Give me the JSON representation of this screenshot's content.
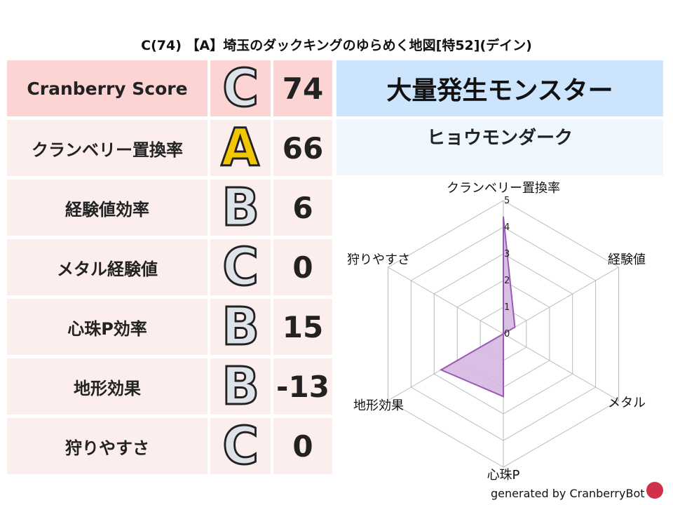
{
  "title": "C(74) 【A】埼玉のダックキングのゆらめく地図[特52](デイン)",
  "rows": [
    {
      "label": "Cranberry Score",
      "grade": "C",
      "score": "74",
      "bg": "#fcd4d4"
    },
    {
      "label": "クランベリー置換率",
      "grade": "A",
      "score": "66",
      "bg": "#fdeeee"
    },
    {
      "label": "経験値効率",
      "grade": "B",
      "score": "6",
      "bg": "#fdeeee"
    },
    {
      "label": "メタル経験値",
      "grade": "C",
      "score": "0",
      "bg": "#fdeeee"
    },
    {
      "label": "心珠P効率",
      "grade": "B",
      "score": "15",
      "bg": "#fdeeee"
    },
    {
      "label": "地形効果",
      "grade": "B",
      "score": "-13",
      "bg": "#fdeeee"
    },
    {
      "label": "狩りやすさ",
      "grade": "C",
      "score": "0",
      "bg": "#fdeeee"
    }
  ],
  "monster": {
    "header": "大量発生モンスター",
    "name": "ヒョウモンダーク"
  },
  "footer": "generated by CranberryBot",
  "chart_data": {
    "type": "radar",
    "categories": [
      "クランベリー置換率",
      "経験値",
      "メタル",
      "心珠P",
      "地形効果",
      "狩りやすさ"
    ],
    "values": [
      4.4,
      0.5,
      0,
      2.35,
      2.7,
      0
    ],
    "rlim": [
      0,
      5
    ],
    "ticks": [
      "0",
      "1",
      "2",
      "3",
      "4",
      "5"
    ],
    "fill": "#d4b8e0",
    "stroke": "#9b59b6",
    "grid": true
  }
}
